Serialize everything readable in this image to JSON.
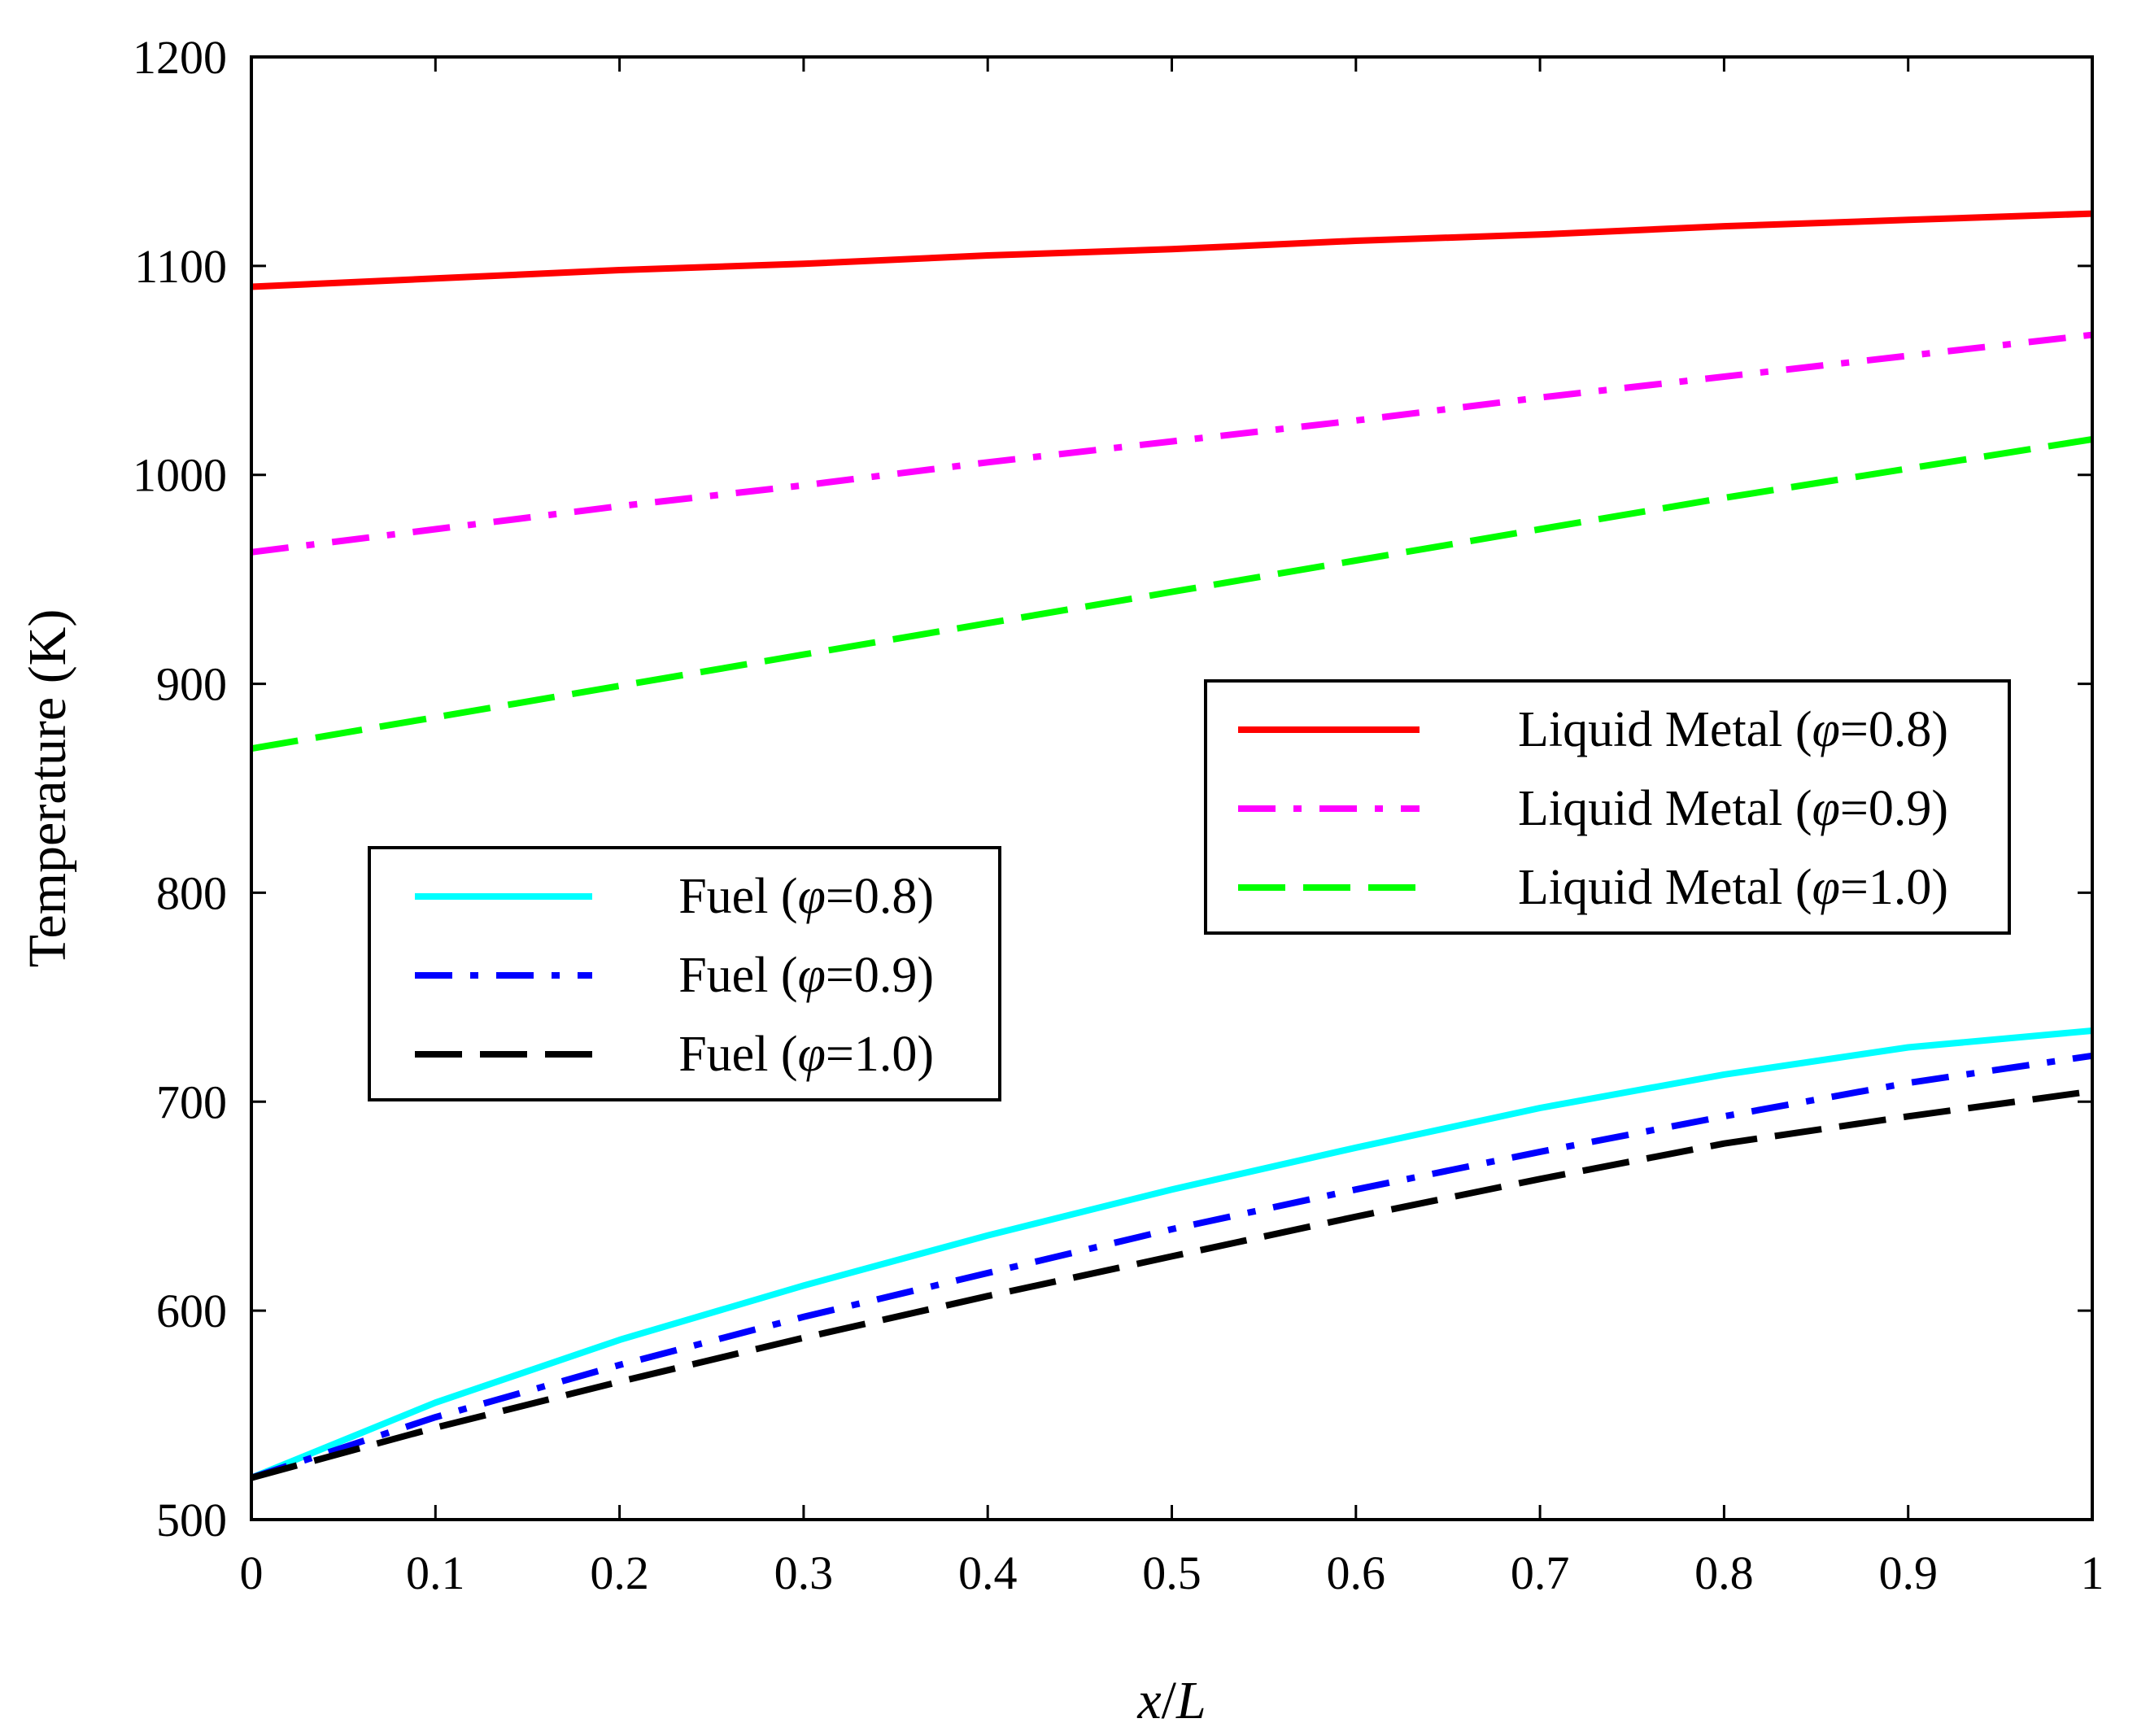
{
  "chart_data": {
    "type": "line",
    "title": "",
    "xlabel": "x/L",
    "ylabel": "Temperature (K)",
    "xlim": [
      0,
      1
    ],
    "ylim": [
      500,
      1200
    ],
    "grid": false,
    "x_ticks": [
      0,
      0.1,
      0.2,
      0.3,
      0.4,
      0.5,
      0.6,
      0.7,
      0.8,
      0.9,
      1
    ],
    "x_tick_labels": [
      "0",
      "0.1",
      "0.2",
      "0.3",
      "0.4",
      "0.5",
      "0.6",
      "0.7",
      "0.8",
      "0.9",
      "1"
    ],
    "y_ticks": [
      500,
      600,
      700,
      800,
      900,
      1000,
      1100,
      1200
    ],
    "y_tick_labels": [
      "500",
      "600",
      "700",
      "800",
      "900",
      "1000",
      "1100",
      "1200"
    ],
    "x": [
      0,
      0.1,
      0.2,
      0.3,
      0.4,
      0.5,
      0.6,
      0.7,
      0.8,
      0.9,
      1.0
    ],
    "series": [
      {
        "name": "Liquid Metal (φ=0.8)",
        "prefix": "Liquid Metal (",
        "phi": "0.8",
        "color": "#ff0000",
        "dash": "solid",
        "values": [
          1090,
          1094,
          1098,
          1101,
          1105,
          1108,
          1112,
          1115,
          1119,
          1122,
          1125
        ]
      },
      {
        "name": "Liquid Metal (φ=0.9)",
        "prefix": "Liquid Metal (",
        "phi": "0.9",
        "color": "#ff00ff",
        "dash": "dashdot",
        "values": [
          963,
          974,
          985,
          995,
          1006,
          1016,
          1026,
          1037,
          1047,
          1057,
          1067
        ]
      },
      {
        "name": "Liquid Metal (φ=1.0)",
        "prefix": "Liquid Metal (",
        "phi": "1.0",
        "color": "#00ff00",
        "dash": "dash",
        "values": [
          869,
          884,
          899,
          914,
          929,
          944,
          959,
          974,
          989,
          1003,
          1017
        ]
      },
      {
        "name": "Fuel (φ=0.8)",
        "prefix": "Fuel (",
        "phi": "0.8",
        "color": "#00ffff",
        "dash": "solid",
        "values": [
          520,
          556,
          586,
          612,
          636,
          658,
          678,
          697,
          713,
          726,
          734
        ]
      },
      {
        "name": "Fuel (φ=0.9)",
        "prefix": "Fuel (",
        "phi": "0.9",
        "color": "#0000ff",
        "dash": "dashdot",
        "values": [
          520,
          549,
          574,
          597,
          618,
          639,
          658,
          676,
          693,
          709,
          722
        ]
      },
      {
        "name": "Fuel (φ=1.0)",
        "prefix": "Fuel (",
        "phi": "1.0",
        "color": "#000000",
        "dash": "dash",
        "values": [
          520,
          544,
          566,
          587,
          607,
          626,
          645,
          663,
          680,
          693,
          705
        ]
      }
    ],
    "legends": [
      {
        "placement": "center-right",
        "series": [
          0,
          1,
          2
        ]
      },
      {
        "placement": "center-left",
        "series": [
          3,
          4,
          5
        ]
      }
    ]
  }
}
